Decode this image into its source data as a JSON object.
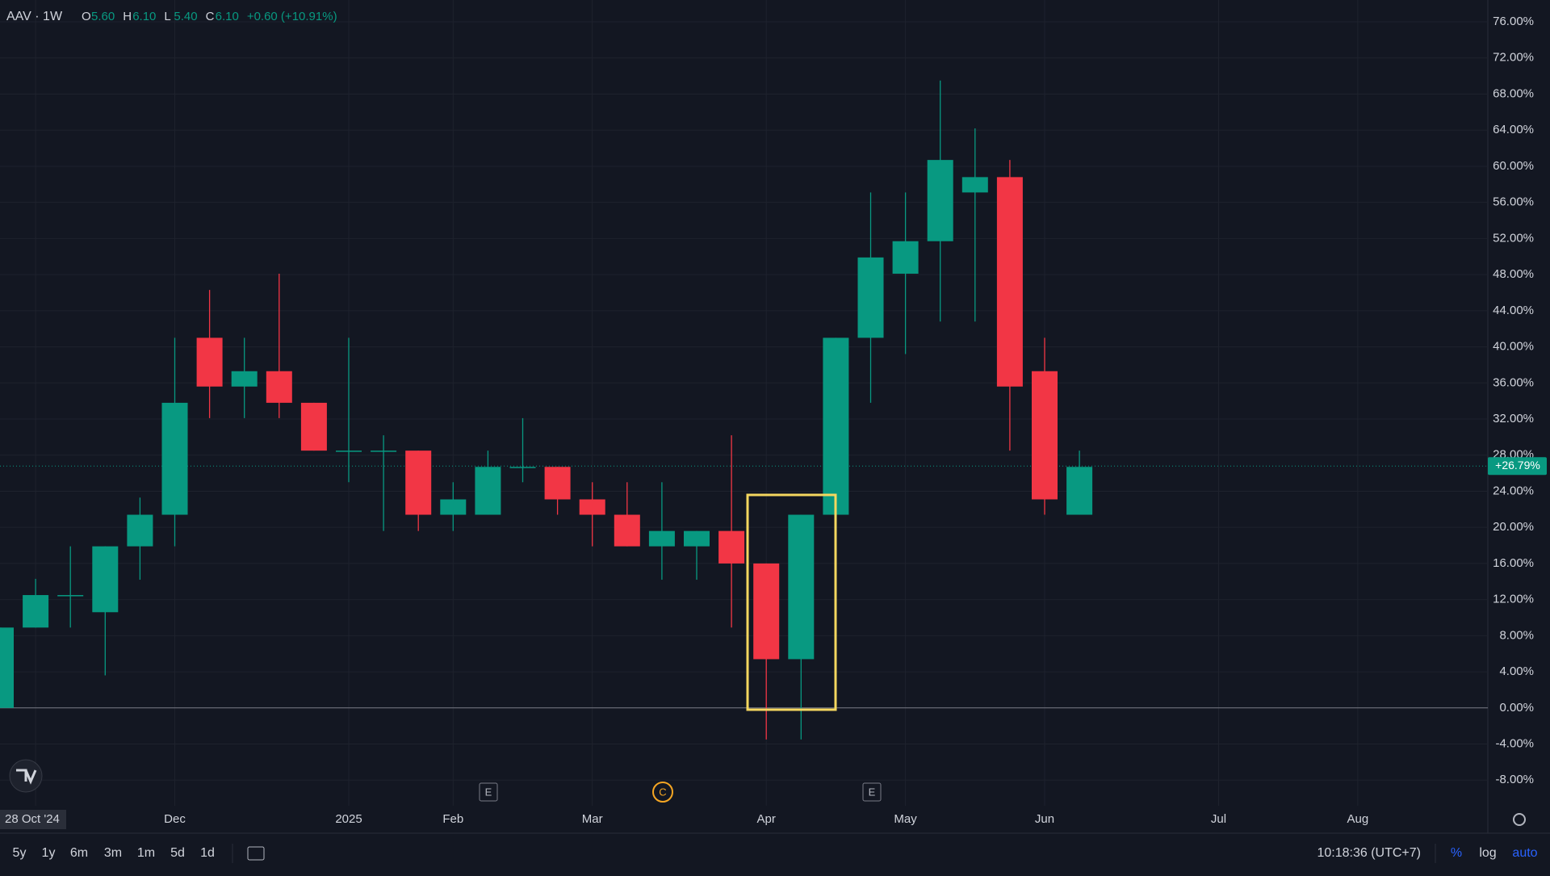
{
  "header": {
    "symbol": "AAV · 1W",
    "ohlc": [
      {
        "key": "O",
        "value": "5.60"
      },
      {
        "key": "H",
        "value": "6.10"
      },
      {
        "key": "L",
        "value": "5.40"
      },
      {
        "key": "C",
        "value": "6.10"
      }
    ],
    "change": "+0.60 (+10.91%)"
  },
  "chart_data": {
    "type": "candlestick",
    "categories": [
      null,
      "28 Oct '24",
      null,
      null,
      null,
      "Dec",
      null,
      null,
      null,
      null,
      "2025",
      null,
      null,
      "Feb",
      null,
      null,
      null,
      "Mar",
      null,
      null,
      null,
      null,
      "Apr",
      null,
      null,
      null,
      "May",
      null,
      null,
      null,
      "Jun",
      null,
      null,
      null,
      null,
      "Jul",
      null,
      null,
      null,
      "Aug",
      null,
      null,
      null
    ],
    "open": [
      0.0,
      8.9,
      12.4,
      10.6,
      17.9,
      21.4,
      41.0,
      35.6,
      37.3,
      33.8,
      28.5,
      28.5,
      28.5,
      21.4,
      21.4,
      26.7,
      26.7,
      23.1,
      21.4,
      17.9,
      17.9,
      19.6,
      16.0,
      5.4,
      21.4,
      41.0,
      48.1,
      51.7,
      57.1,
      58.8,
      37.3,
      21.4,
      null,
      null,
      null,
      null,
      null,
      null,
      null,
      null,
      null,
      null,
      null
    ],
    "high": [
      8.9,
      14.3,
      17.9,
      17.9,
      23.3,
      41.0,
      46.3,
      41.0,
      48.1,
      33.8,
      41.0,
      30.2,
      28.5,
      25.0,
      28.5,
      32.1,
      26.7,
      25.0,
      25.0,
      25.0,
      19.6,
      30.2,
      16.0,
      21.4,
      41.0,
      57.1,
      57.1,
      69.5,
      64.2,
      60.7,
      41.0,
      28.5,
      null,
      null,
      null,
      null,
      null,
      null,
      null,
      null,
      null,
      null,
      null
    ],
    "low": [
      0.0,
      8.9,
      8.9,
      3.6,
      14.2,
      17.9,
      32.1,
      32.1,
      32.1,
      28.5,
      25.0,
      19.6,
      19.6,
      19.6,
      21.4,
      25.0,
      21.4,
      17.9,
      17.9,
      14.2,
      14.2,
      8.9,
      -3.5,
      -3.5,
      21.4,
      33.8,
      39.2,
      42.8,
      42.8,
      28.5,
      21.4,
      21.4,
      null,
      null,
      null,
      null,
      null,
      null,
      null,
      null,
      null,
      null,
      null
    ],
    "close": [
      8.9,
      12.5,
      12.5,
      17.9,
      21.4,
      33.8,
      35.6,
      37.3,
      33.8,
      28.5,
      28.5,
      28.5,
      21.4,
      23.1,
      26.7,
      26.7,
      23.1,
      21.4,
      17.9,
      19.6,
      19.6,
      16.0,
      5.4,
      21.4,
      41.0,
      49.9,
      51.7,
      60.7,
      58.8,
      35.6,
      23.1,
      26.7,
      null,
      null,
      null,
      null,
      null,
      null,
      null,
      null,
      null,
      null,
      null
    ],
    "up_color": "#089981",
    "down_color": "#f23645",
    "ylim": [
      -10.84,
      78.42
    ],
    "yticks": [
      {
        "value": -8,
        "label": "-8.00%"
      },
      {
        "value": -4,
        "label": "-4.00%"
      },
      {
        "value": 0,
        "label": "0.00%"
      },
      {
        "value": 4,
        "label": "4.00%"
      },
      {
        "value": 8,
        "label": "8.00%"
      },
      {
        "value": 12,
        "label": "12.00%"
      },
      {
        "value": 16,
        "label": "16.00%"
      },
      {
        "value": 20,
        "label": "20.00%"
      },
      {
        "value": 24,
        "label": "24.00%"
      },
      {
        "value": 28,
        "label": "28.00%"
      },
      {
        "value": 32,
        "label": "32.00%"
      },
      {
        "value": 36,
        "label": "36.00%"
      },
      {
        "value": 40,
        "label": "40.00%"
      },
      {
        "value": 44,
        "label": "44.00%"
      },
      {
        "value": 48,
        "label": "48.00%"
      },
      {
        "value": 52,
        "label": "52.00%"
      },
      {
        "value": 56,
        "label": "56.00%"
      },
      {
        "value": 60,
        "label": "60.00%"
      },
      {
        "value": 64,
        "label": "64.00%"
      },
      {
        "value": 68,
        "label": "68.00%"
      },
      {
        "value": 72,
        "label": "72.00%"
      },
      {
        "value": 76,
        "label": "76.00%"
      }
    ],
    "zero_line": 0,
    "last_price": {
      "value": 26.79,
      "label": "+26.79%"
    },
    "grid": true
  },
  "events": [
    "E",
    "C",
    "E"
  ],
  "toolbar": {
    "ranges": [
      "5y",
      "1y",
      "6m",
      "3m",
      "1m",
      "5d",
      "1d"
    ],
    "time": "10:18:36 (UTC+7)",
    "percent": "%",
    "log": "log",
    "auto": "auto"
  }
}
